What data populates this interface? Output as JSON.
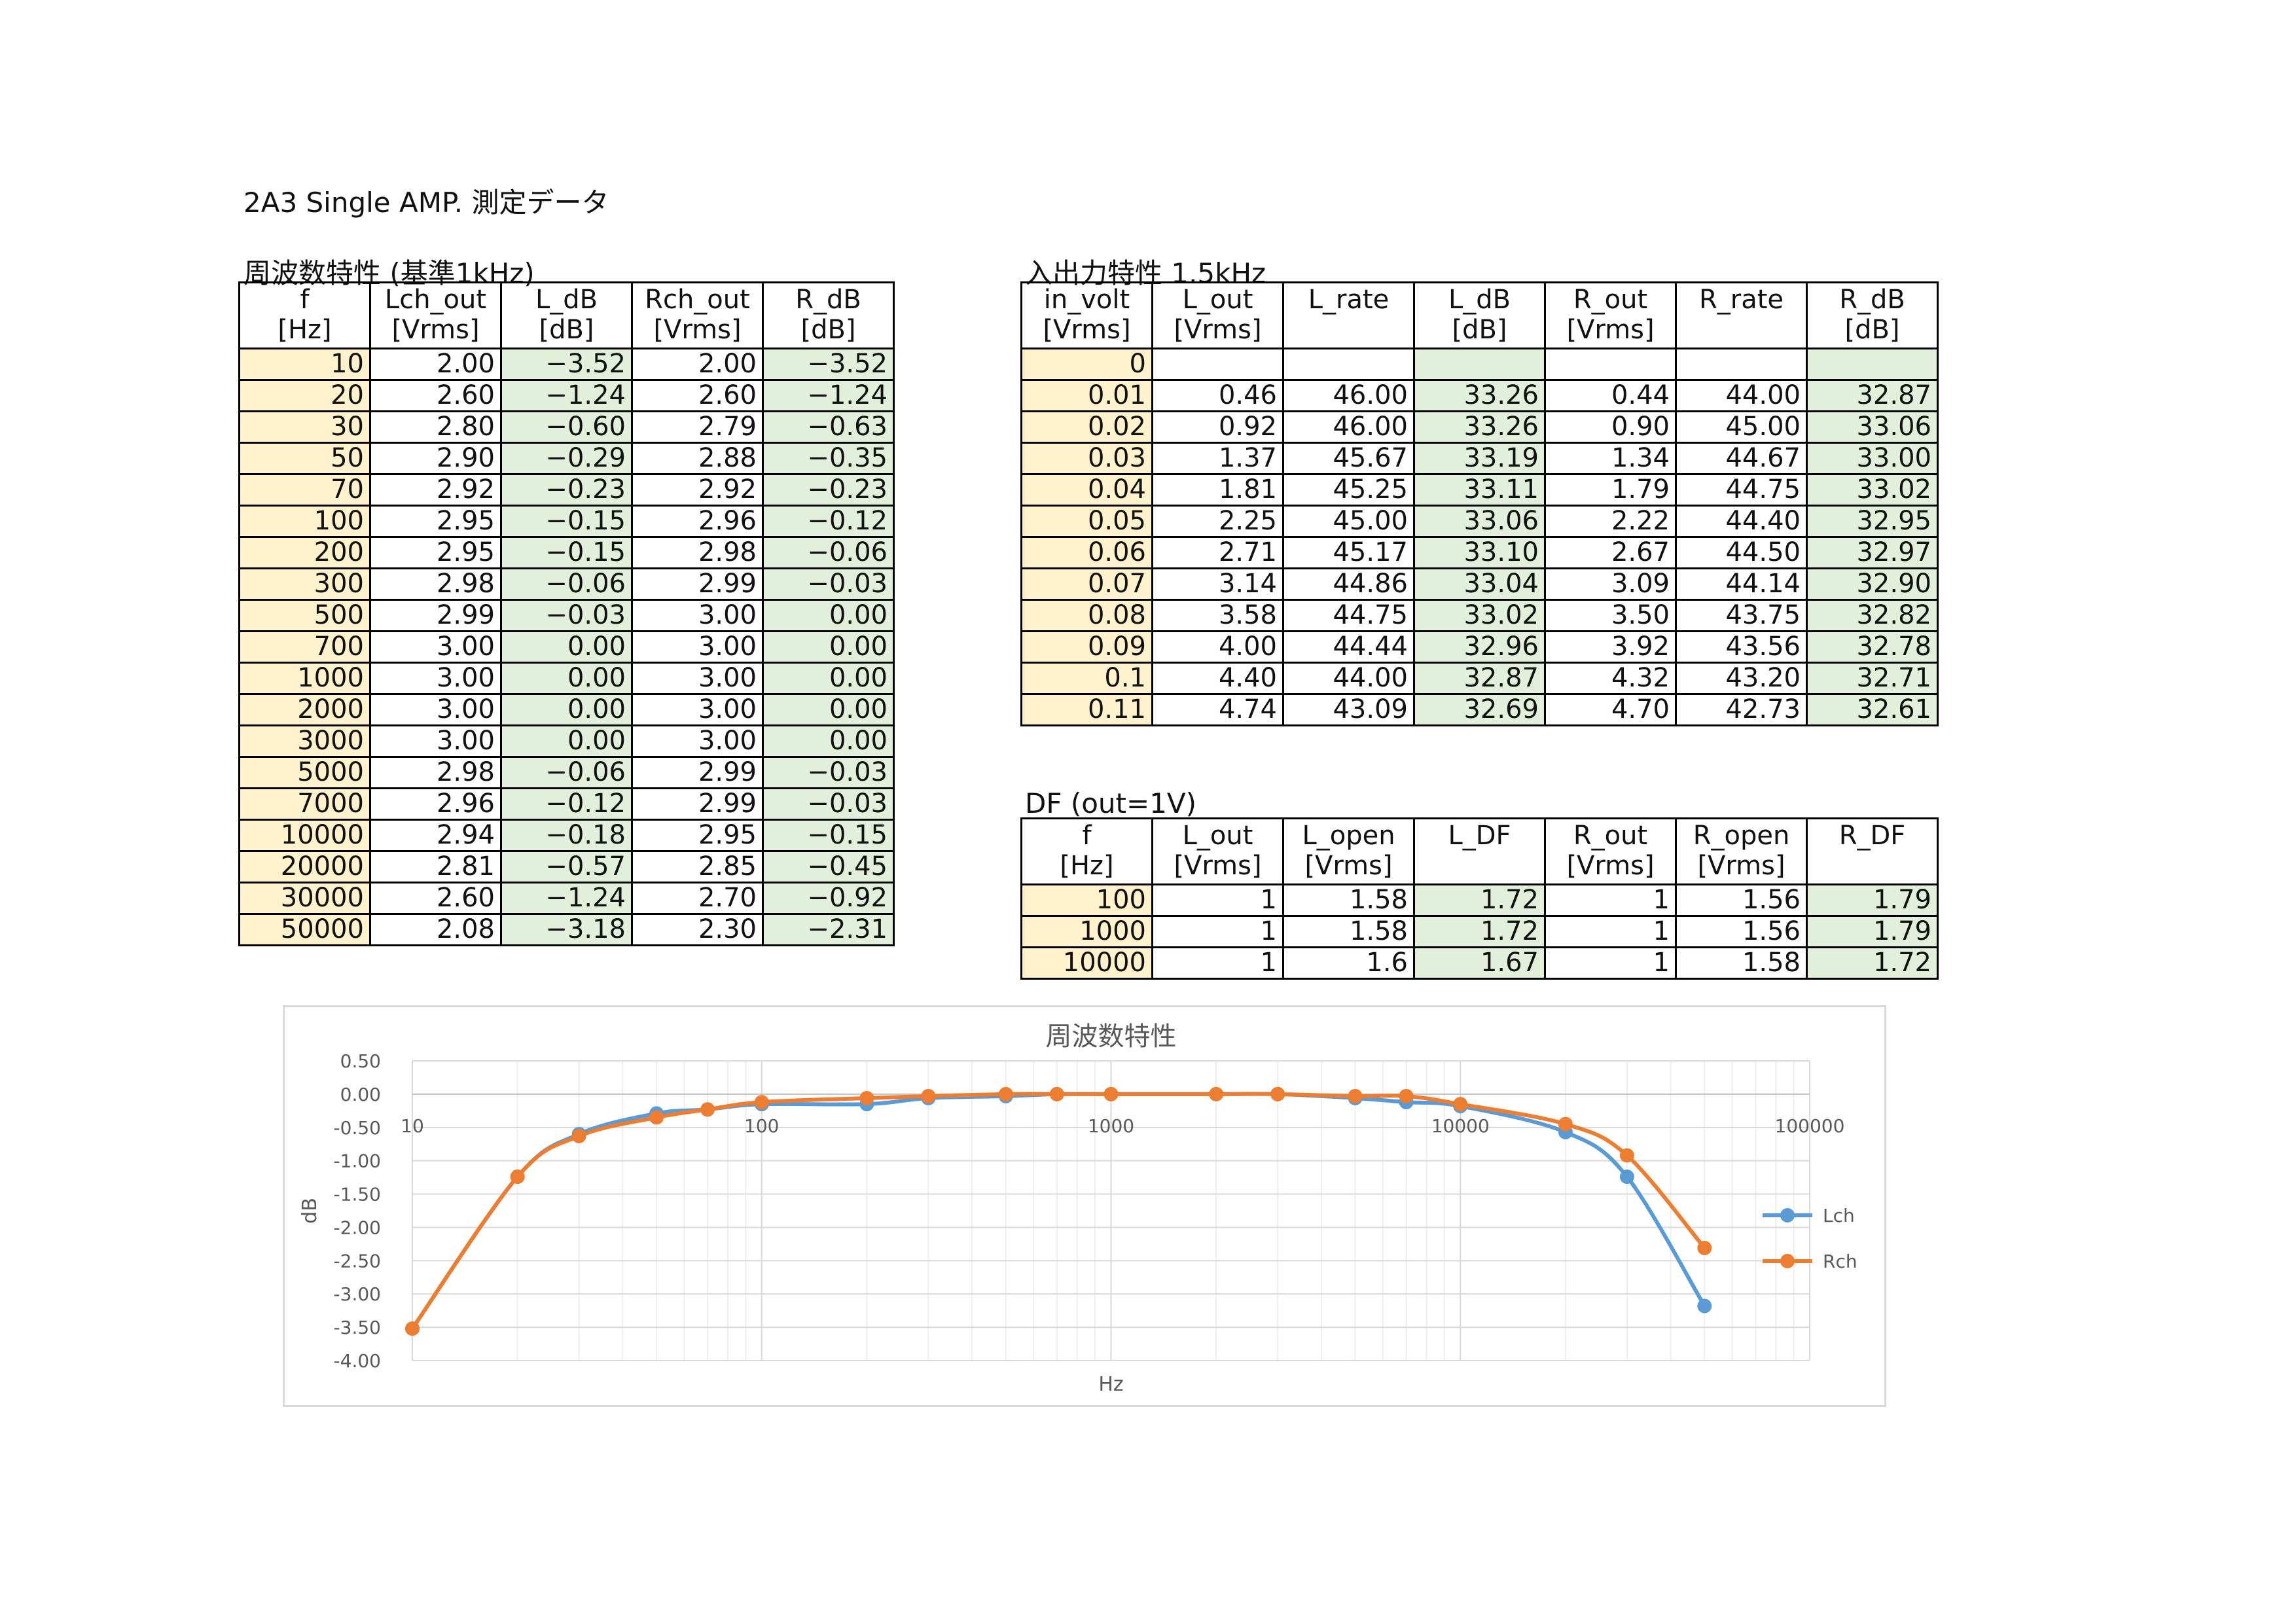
{
  "page_title": "2A3 Single AMP. 測定データ",
  "freq_section": {
    "title": "周波数特性 (基準1kHz)",
    "headers": [
      [
        "f",
        "[Hz]"
      ],
      [
        "Lch_out",
        "[Vrms]"
      ],
      [
        "L_dB",
        "[dB]"
      ],
      [
        "Rch_out",
        "[Vrms]"
      ],
      [
        "R_dB",
        "[dB]"
      ]
    ],
    "rows": [
      [
        "10",
        "2.00",
        "-3.52",
        "2.00",
        "-3.52"
      ],
      [
        "20",
        "2.60",
        "-1.24",
        "2.60",
        "-1.24"
      ],
      [
        "30",
        "2.80",
        "-0.60",
        "2.79",
        "-0.63"
      ],
      [
        "50",
        "2.90",
        "-0.29",
        "2.88",
        "-0.35"
      ],
      [
        "70",
        "2.92",
        "-0.23",
        "2.92",
        "-0.23"
      ],
      [
        "100",
        "2.95",
        "-0.15",
        "2.96",
        "-0.12"
      ],
      [
        "200",
        "2.95",
        "-0.15",
        "2.98",
        "-0.06"
      ],
      [
        "300",
        "2.98",
        "-0.06",
        "2.99",
        "-0.03"
      ],
      [
        "500",
        "2.99",
        "-0.03",
        "3.00",
        "0.00"
      ],
      [
        "700",
        "3.00",
        "0.00",
        "3.00",
        "0.00"
      ],
      [
        "1000",
        "3.00",
        "0.00",
        "3.00",
        "0.00"
      ],
      [
        "2000",
        "3.00",
        "0.00",
        "3.00",
        "0.00"
      ],
      [
        "3000",
        "3.00",
        "0.00",
        "3.00",
        "0.00"
      ],
      [
        "5000",
        "2.98",
        "-0.06",
        "2.99",
        "-0.03"
      ],
      [
        "7000",
        "2.96",
        "-0.12",
        "2.99",
        "-0.03"
      ],
      [
        "10000",
        "2.94",
        "-0.18",
        "2.95",
        "-0.15"
      ],
      [
        "20000",
        "2.81",
        "-0.57",
        "2.85",
        "-0.45"
      ],
      [
        "30000",
        "2.60",
        "-1.24",
        "2.70",
        "-0.92"
      ],
      [
        "50000",
        "2.08",
        "-3.18",
        "2.30",
        "-2.31"
      ]
    ]
  },
  "io_section": {
    "title": "入出力特性  1.5kHz",
    "headers": [
      [
        "in_volt",
        "[Vrms]"
      ],
      [
        "L_out",
        "[Vrms]"
      ],
      [
        "L_rate",
        ""
      ],
      [
        "L_dB",
        "[dB]"
      ],
      [
        "R_out",
        "[Vrms]"
      ],
      [
        "R_rate",
        ""
      ],
      [
        "R_dB",
        "[dB]"
      ]
    ],
    "rows": [
      [
        "0",
        "",
        "",
        "",
        "",
        "",
        ""
      ],
      [
        "0.01",
        "0.46",
        "46.00",
        "33.26",
        "0.44",
        "44.00",
        "32.87"
      ],
      [
        "0.02",
        "0.92",
        "46.00",
        "33.26",
        "0.90",
        "45.00",
        "33.06"
      ],
      [
        "0.03",
        "1.37",
        "45.67",
        "33.19",
        "1.34",
        "44.67",
        "33.00"
      ],
      [
        "0.04",
        "1.81",
        "45.25",
        "33.11",
        "1.79",
        "44.75",
        "33.02"
      ],
      [
        "0.05",
        "2.25",
        "45.00",
        "33.06",
        "2.22",
        "44.40",
        "32.95"
      ],
      [
        "0.06",
        "2.71",
        "45.17",
        "33.10",
        "2.67",
        "44.50",
        "32.97"
      ],
      [
        "0.07",
        "3.14",
        "44.86",
        "33.04",
        "3.09",
        "44.14",
        "32.90"
      ],
      [
        "0.08",
        "3.58",
        "44.75",
        "33.02",
        "3.50",
        "43.75",
        "32.82"
      ],
      [
        "0.09",
        "4.00",
        "44.44",
        "32.96",
        "3.92",
        "43.56",
        "32.78"
      ],
      [
        "0.1",
        "4.40",
        "44.00",
        "32.87",
        "4.32",
        "43.20",
        "32.71"
      ],
      [
        "0.11",
        "4.74",
        "43.09",
        "32.69",
        "4.70",
        "42.73",
        "32.61"
      ]
    ]
  },
  "df_section": {
    "title": "DF (out=1V)",
    "headers": [
      [
        "f",
        "[Hz]"
      ],
      [
        "L_out",
        "[Vrms]"
      ],
      [
        "L_open",
        "[Vrms]"
      ],
      [
        "L_DF",
        ""
      ],
      [
        "R_out",
        "[Vrms]"
      ],
      [
        "R_open",
        "[Vrms]"
      ],
      [
        "R_DF",
        ""
      ]
    ],
    "rows": [
      [
        "100",
        "1",
        "1.58",
        "1.72",
        "1",
        "1.56",
        "1.79"
      ],
      [
        "1000",
        "1",
        "1.58",
        "1.72",
        "1",
        "1.56",
        "1.79"
      ],
      [
        "10000",
        "1",
        "1.6",
        "1.67",
        "1",
        "1.58",
        "1.72"
      ]
    ]
  },
  "chart_data": {
    "type": "scatter",
    "title": "周波数特性",
    "xlabel": "Hz",
    "ylabel": "dB",
    "x_scale": "log",
    "xlim": [
      10,
      100000
    ],
    "ylim": [
      -4,
      0.5
    ],
    "x_ticks": [
      "10",
      "100",
      "1000",
      "10000",
      "100000"
    ],
    "y_ticks": [
      "0.50",
      "0.00",
      "-0.50",
      "-1.00",
      "-1.50",
      "-2.00",
      "-2.50",
      "-3.00",
      "-3.50",
      "-4.00"
    ],
    "legend_position": "right",
    "grid": true,
    "x": [
      10,
      20,
      30,
      50,
      70,
      100,
      200,
      300,
      500,
      700,
      1000,
      2000,
      3000,
      5000,
      7000,
      10000,
      20000,
      30000,
      50000
    ],
    "series": [
      {
        "name": "Lch",
        "color": "#5b9bd5",
        "values": [
          -3.52,
          -1.24,
          -0.6,
          -0.29,
          -0.23,
          -0.15,
          -0.15,
          -0.06,
          -0.03,
          0.0,
          0.0,
          0.0,
          0.0,
          -0.06,
          -0.12,
          -0.18,
          -0.57,
          -1.24,
          -3.18
        ]
      },
      {
        "name": "Rch",
        "color": "#ed7d31",
        "values": [
          -3.52,
          -1.24,
          -0.63,
          -0.35,
          -0.23,
          -0.12,
          -0.06,
          -0.03,
          0.0,
          0.0,
          0.0,
          0.0,
          0.0,
          -0.03,
          -0.03,
          -0.15,
          -0.45,
          -0.92,
          -2.31
        ]
      }
    ]
  }
}
